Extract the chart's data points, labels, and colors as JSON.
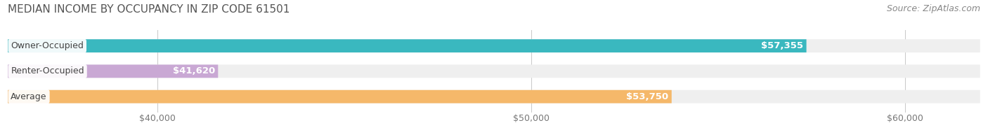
{
  "title": "MEDIAN INCOME BY OCCUPANCY IN ZIP CODE 61501",
  "source": "Source: ZipAtlas.com",
  "categories": [
    "Owner-Occupied",
    "Renter-Occupied",
    "Average"
  ],
  "values": [
    57355,
    41620,
    53750
  ],
  "bar_colors": [
    "#3ab8bf",
    "#c9a8d4",
    "#f5b86a"
  ],
  "bar_bg_color": "#efefef",
  "label_values": [
    "$57,355",
    "$41,620",
    "$53,750"
  ],
  "xlim": [
    36000,
    62000
  ],
  "xticks": [
    40000,
    50000,
    60000
  ],
  "xtick_labels": [
    "$40,000",
    "$50,000",
    "$60,000"
  ],
  "title_fontsize": 11,
  "title_color": "#555555",
  "source_fontsize": 9,
  "source_color": "#888888",
  "bar_label_fontsize": 9.5,
  "bar_height": 0.52,
  "figsize": [
    14.06,
    1.96
  ],
  "dpi": 100,
  "background_color": "#ffffff"
}
